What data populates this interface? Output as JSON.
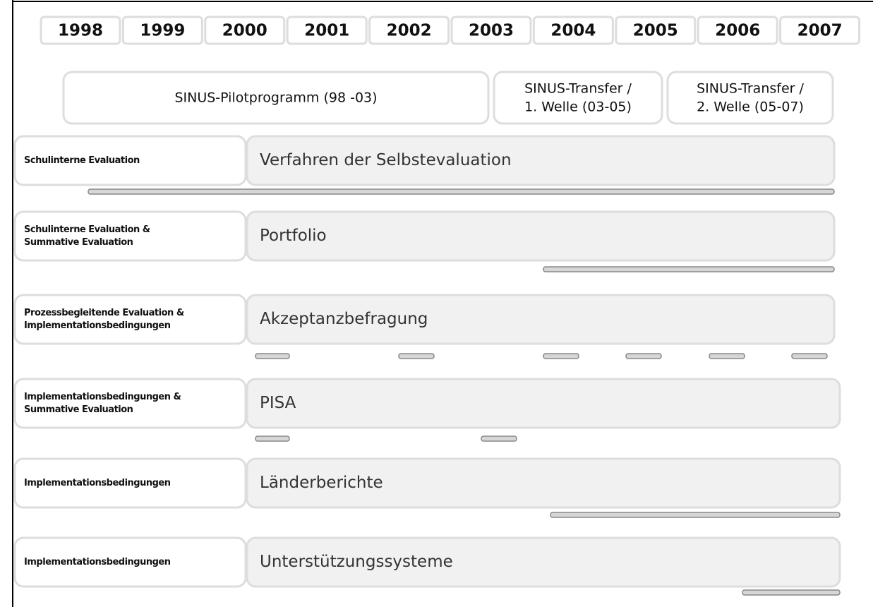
{
  "years": [
    "1998",
    "1999",
    "2000",
    "2001",
    "2002",
    "2003",
    "2004",
    "2005",
    "2006",
    "2007"
  ],
  "phases": [
    {
      "lines": [
        "SINUS-Pilotprogramm (98 -03)"
      ]
    },
    {
      "lines": [
        "SINUS-Transfer /",
        "1. Welle (03-05)"
      ]
    },
    {
      "lines": [
        "SINUS-Transfer /",
        "2. Welle (05-07)"
      ]
    }
  ],
  "rows": [
    {
      "label": [
        "Schulinterne Evaluation"
      ],
      "title": "Verfahren der Selbstevaluation"
    },
    {
      "label": [
        "Schulinterne Evaluation &",
        "Summative Evaluation"
      ],
      "title": "Portfolio"
    },
    {
      "label": [
        "Prozessbegleitende Evaluation &",
        "Implementationsbedingungen"
      ],
      "title": "Akzeptanzbefragung"
    },
    {
      "label": [
        "Implementationsbedingungen &",
        "Summative Evaluation"
      ],
      "title": "PISA"
    },
    {
      "label": [
        "Implementationsbedingungen"
      ],
      "title": "Länderberichte"
    },
    {
      "label": [
        "Implementationsbedingungen"
      ],
      "title": "Unterstützungssysteme"
    }
  ]
}
